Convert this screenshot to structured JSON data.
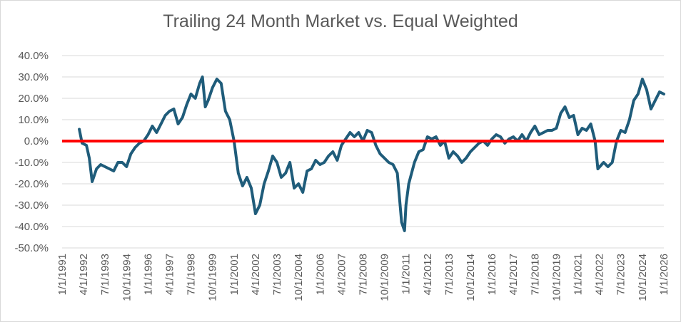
{
  "chart_data": {
    "type": "line",
    "title": "Trailing 24 Month Market vs. Equal Weighted",
    "xlabel": "",
    "ylabel": "",
    "y_format": "percent_1dp",
    "ylim": [
      -50,
      40
    ],
    "y_ticks": [
      -50,
      -40,
      -30,
      -20,
      -10,
      0,
      10,
      20,
      30,
      40
    ],
    "y_tick_labels": [
      "-50.0%",
      "-40.0%",
      "-30.0%",
      "-20.0%",
      "-10.0%",
      "0.0%",
      "10.0%",
      "20.0%",
      "30.0%",
      "40.0%"
    ],
    "x_type": "date",
    "xlim": [
      "1991-01-01",
      "2026-01-01"
    ],
    "x_tick_labels": [
      "1/1/1991",
      "4/1/1992",
      "7/1/1993",
      "10/1/1994",
      "1/1/1996",
      "4/1/1997",
      "7/1/1998",
      "10/1/1999",
      "1/1/2001",
      "4/1/2002",
      "7/1/2003",
      "10/1/2004",
      "1/1/2006",
      "4/1/2007",
      "7/1/2008",
      "10/1/2009",
      "1/1/2011",
      "4/1/2012",
      "7/1/2013",
      "10/1/2014",
      "1/1/2016",
      "4/1/2017",
      "7/1/2018",
      "10/1/2019",
      "1/1/2021",
      "4/1/2022",
      "7/1/2023",
      "10/1/2024",
      "1/1/2026"
    ],
    "x_ticks": [
      "1991-01-01",
      "1992-04-01",
      "1993-07-01",
      "1994-10-01",
      "1996-01-01",
      "1997-04-01",
      "1998-07-01",
      "1999-10-01",
      "2001-01-01",
      "2002-04-01",
      "2003-07-01",
      "2004-10-01",
      "2006-01-01",
      "2007-04-01",
      "2008-07-01",
      "2009-10-01",
      "2011-01-01",
      "2012-04-01",
      "2013-07-01",
      "2014-10-01",
      "2016-01-01",
      "2017-04-01",
      "2018-07-01",
      "2019-10-01",
      "2021-01-01",
      "2022-04-01",
      "2023-07-01",
      "2024-10-01",
      "2026-01-01"
    ],
    "grid": true,
    "legend": "none",
    "series": [
      {
        "color": "#1f5c7a",
        "points": [
          [
            "1992-01-01",
            5.5
          ],
          [
            "1992-03-01",
            -1
          ],
          [
            "1992-06-01",
            -2
          ],
          [
            "1992-08-01",
            -8
          ],
          [
            "1992-10-01",
            -19
          ],
          [
            "1993-01-01",
            -13
          ],
          [
            "1993-04-01",
            -11
          ],
          [
            "1993-07-01",
            -12
          ],
          [
            "1993-10-01",
            -13
          ],
          [
            "1994-01-01",
            -14
          ],
          [
            "1994-04-01",
            -10
          ],
          [
            "1994-07-01",
            -10
          ],
          [
            "1994-10-01",
            -12
          ],
          [
            "1995-01-01",
            -6
          ],
          [
            "1995-04-01",
            -3
          ],
          [
            "1995-07-01",
            -1
          ],
          [
            "1995-10-01",
            0
          ],
          [
            "1996-01-01",
            3
          ],
          [
            "1996-04-01",
            7
          ],
          [
            "1996-07-01",
            4
          ],
          [
            "1996-10-01",
            8
          ],
          [
            "1997-01-01",
            12
          ],
          [
            "1997-04-01",
            14
          ],
          [
            "1997-07-01",
            15
          ],
          [
            "1997-10-01",
            8
          ],
          [
            "1998-01-01",
            11
          ],
          [
            "1998-04-01",
            17
          ],
          [
            "1998-07-01",
            22
          ],
          [
            "1998-10-01",
            20
          ],
          [
            "1999-01-01",
            27
          ],
          [
            "1999-03-01",
            30
          ],
          [
            "1999-05-01",
            16
          ],
          [
            "1999-07-01",
            19
          ],
          [
            "1999-10-01",
            25
          ],
          [
            "2000-01-01",
            29
          ],
          [
            "2000-04-01",
            27
          ],
          [
            "2000-07-01",
            14
          ],
          [
            "2000-10-01",
            10
          ],
          [
            "2001-01-01",
            0
          ],
          [
            "2001-04-01",
            -15
          ],
          [
            "2001-07-01",
            -21
          ],
          [
            "2001-10-01",
            -17
          ],
          [
            "2002-01-01",
            -22
          ],
          [
            "2002-04-01",
            -34
          ],
          [
            "2002-07-01",
            -30
          ],
          [
            "2002-10-01",
            -20
          ],
          [
            "2003-01-01",
            -14
          ],
          [
            "2003-04-01",
            -7
          ],
          [
            "2003-07-01",
            -10
          ],
          [
            "2003-10-01",
            -17
          ],
          [
            "2004-01-01",
            -15
          ],
          [
            "2004-04-01",
            -10
          ],
          [
            "2004-07-01",
            -22
          ],
          [
            "2004-10-01",
            -20
          ],
          [
            "2005-01-01",
            -24
          ],
          [
            "2005-04-01",
            -14
          ],
          [
            "2005-07-01",
            -13
          ],
          [
            "2005-10-01",
            -9
          ],
          [
            "2006-01-01",
            -11
          ],
          [
            "2006-04-01",
            -10
          ],
          [
            "2006-07-01",
            -7
          ],
          [
            "2006-10-01",
            -5
          ],
          [
            "2007-01-01",
            -9
          ],
          [
            "2007-04-01",
            -2
          ],
          [
            "2007-07-01",
            1
          ],
          [
            "2007-10-01",
            4
          ],
          [
            "2008-01-01",
            2
          ],
          [
            "2008-04-01",
            4
          ],
          [
            "2008-07-01",
            0
          ],
          [
            "2008-10-01",
            5
          ],
          [
            "2009-01-01",
            4
          ],
          [
            "2009-04-01",
            -2
          ],
          [
            "2009-07-01",
            -6
          ],
          [
            "2009-10-01",
            -8
          ],
          [
            "2010-01-01",
            -10
          ],
          [
            "2010-04-01",
            -11
          ],
          [
            "2010-07-01",
            -15
          ],
          [
            "2010-10-01",
            -38
          ],
          [
            "2010-12-01",
            -42
          ],
          [
            "2011-01-01",
            -30
          ],
          [
            "2011-03-01",
            -20
          ],
          [
            "2011-07-01",
            -10
          ],
          [
            "2011-10-01",
            -5
          ],
          [
            "2012-01-01",
            -4
          ],
          [
            "2012-04-01",
            2
          ],
          [
            "2012-07-01",
            1
          ],
          [
            "2012-10-01",
            2
          ],
          [
            "2013-01-01",
            -2
          ],
          [
            "2013-04-01",
            0
          ],
          [
            "2013-07-01",
            -8
          ],
          [
            "2013-10-01",
            -5
          ],
          [
            "2014-01-01",
            -7
          ],
          [
            "2014-04-01",
            -10
          ],
          [
            "2014-07-01",
            -8
          ],
          [
            "2014-10-01",
            -5
          ],
          [
            "2015-01-01",
            -3
          ],
          [
            "2015-04-01",
            -1
          ],
          [
            "2015-07-01",
            0
          ],
          [
            "2015-10-01",
            -2
          ],
          [
            "2016-01-01",
            1
          ],
          [
            "2016-04-01",
            3
          ],
          [
            "2016-07-01",
            2
          ],
          [
            "2016-10-01",
            -1
          ],
          [
            "2017-01-01",
            1
          ],
          [
            "2017-04-01",
            2
          ],
          [
            "2017-07-01",
            0
          ],
          [
            "2017-10-01",
            3
          ],
          [
            "2018-01-01",
            0
          ],
          [
            "2018-04-01",
            4
          ],
          [
            "2018-07-01",
            7
          ],
          [
            "2018-10-01",
            3
          ],
          [
            "2019-01-01",
            4
          ],
          [
            "2019-04-01",
            5
          ],
          [
            "2019-07-01",
            5
          ],
          [
            "2019-10-01",
            6
          ],
          [
            "2020-01-01",
            13
          ],
          [
            "2020-04-01",
            16
          ],
          [
            "2020-07-01",
            11
          ],
          [
            "2020-10-01",
            12
          ],
          [
            "2021-01-01",
            3
          ],
          [
            "2021-04-01",
            6
          ],
          [
            "2021-07-01",
            5
          ],
          [
            "2021-10-01",
            8
          ],
          [
            "2022-01-01",
            0
          ],
          [
            "2022-03-01",
            -13
          ],
          [
            "2022-07-01",
            -10
          ],
          [
            "2022-10-01",
            -12
          ],
          [
            "2023-01-01",
            -10
          ],
          [
            "2023-04-01",
            0
          ],
          [
            "2023-07-01",
            5
          ],
          [
            "2023-10-01",
            4
          ],
          [
            "2024-01-01",
            10
          ],
          [
            "2024-04-01",
            19
          ],
          [
            "2024-07-01",
            22
          ],
          [
            "2024-10-01",
            29
          ],
          [
            "2025-01-01",
            24
          ],
          [
            "2025-04-01",
            15
          ],
          [
            "2025-07-01",
            19
          ],
          [
            "2025-10-01",
            23
          ],
          [
            "2026-01-01",
            22
          ]
        ]
      }
    ],
    "reference_line": {
      "y": 0,
      "color": "#ff0000"
    },
    "colors": {
      "grid": "#d9d9d9",
      "text": "#595959",
      "border": "#d9d9d9",
      "background": "#ffffff"
    }
  }
}
